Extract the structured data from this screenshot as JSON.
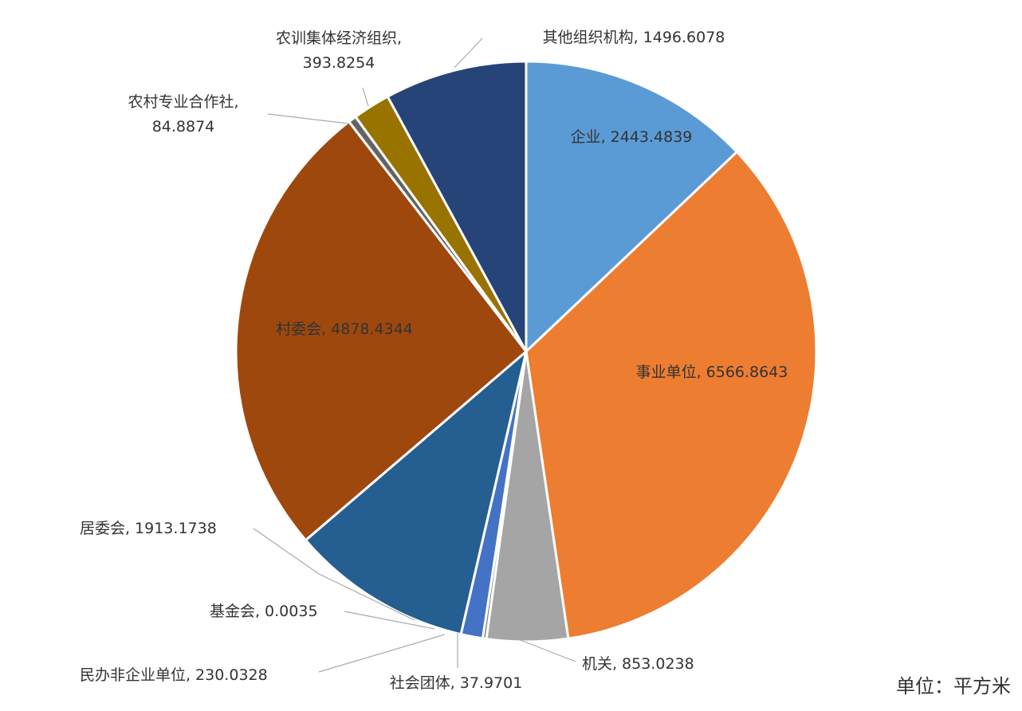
{
  "chart_data": {
    "type": "pie",
    "categories": [
      "企业,",
      "事业单位,",
      "机关,",
      "社会团体,",
      "民办非企业单位,",
      "基金会,",
      "居委会,",
      "村委会,",
      "农村专业合作社,",
      "农训集体经济组织,",
      "其他组织机构,"
    ],
    "values": [
      2443.4839,
      6566.8643,
      853.0238,
      37.9701,
      230.0328,
      0.0035,
      1913.1738,
      4878.4344,
      84.8874,
      393.8254,
      1496.6078
    ],
    "colors": [
      "#5b9bd5",
      "#ed7d31",
      "#a5a5a5",
      "#7f7f7f",
      "#4472c4",
      "#255e91",
      "#255e91",
      "#9e480e",
      "#636363",
      "#997300",
      "#264478"
    ],
    "unit_note": "单位：平方米"
  }
}
